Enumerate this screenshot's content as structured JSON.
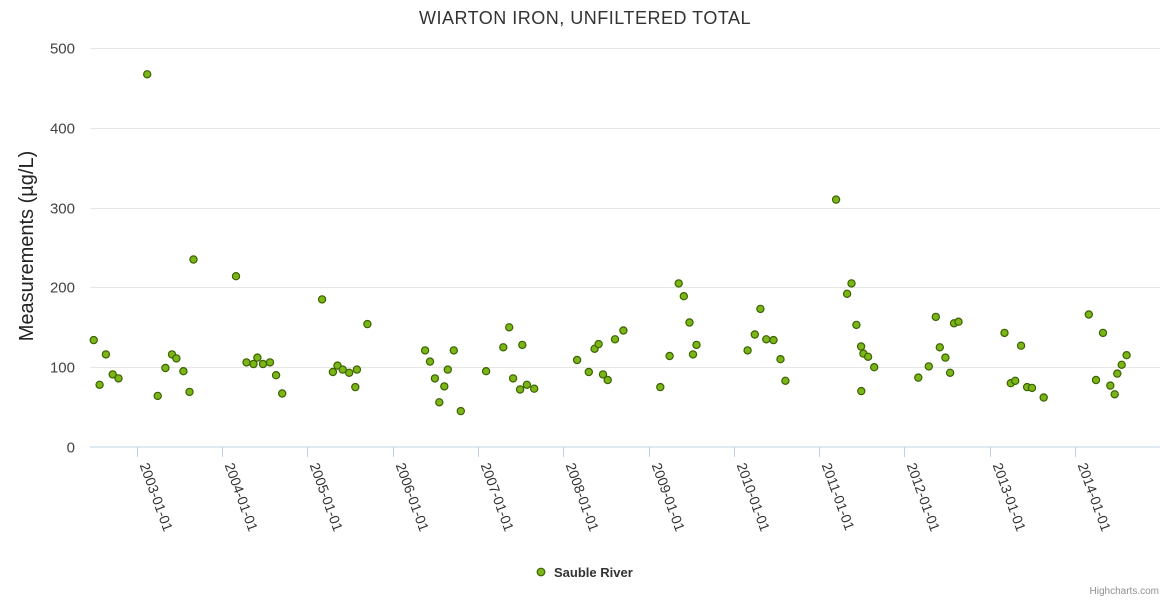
{
  "chart_data": {
    "type": "scatter",
    "title": "WIARTON IRON, UNFILTERED TOTAL",
    "ylabel": "Measurements (µg/L)",
    "xlabel": "",
    "ylim": [
      0,
      500
    ],
    "yticks": [
      0,
      100,
      200,
      300,
      400,
      500
    ],
    "xlim": [
      "2002-06-15",
      "2014-12-31"
    ],
    "xticks": [
      "2003-01-01",
      "2004-01-01",
      "2005-01-01",
      "2006-01-01",
      "2007-01-01",
      "2008-01-01",
      "2009-01-01",
      "2010-01-01",
      "2011-01-01",
      "2012-01-01",
      "2013-01-01",
      "2014-01-01"
    ],
    "legend": "bottom-center",
    "series": [
      {
        "name": "Sauble River",
        "color": "#7cb518",
        "points": [
          {
            "x": "2002-07-01",
            "y": 134
          },
          {
            "x": "2002-07-26",
            "y": 78
          },
          {
            "x": "2002-08-22",
            "y": 116
          },
          {
            "x": "2002-09-20",
            "y": 91
          },
          {
            "x": "2002-10-15",
            "y": 86
          },
          {
            "x": "2003-02-15",
            "y": 467
          },
          {
            "x": "2003-04-01",
            "y": 64
          },
          {
            "x": "2003-05-04",
            "y": 99
          },
          {
            "x": "2003-06-01",
            "y": 116
          },
          {
            "x": "2003-06-20",
            "y": 111
          },
          {
            "x": "2003-07-20",
            "y": 95
          },
          {
            "x": "2003-08-15",
            "y": 69
          },
          {
            "x": "2003-09-01",
            "y": 235
          },
          {
            "x": "2004-03-01",
            "y": 214
          },
          {
            "x": "2004-04-15",
            "y": 106
          },
          {
            "x": "2004-05-15",
            "y": 104
          },
          {
            "x": "2004-06-01",
            "y": 112
          },
          {
            "x": "2004-06-25",
            "y": 104
          },
          {
            "x": "2004-07-25",
            "y": 106
          },
          {
            "x": "2004-08-20",
            "y": 90
          },
          {
            "x": "2004-09-15",
            "y": 67
          },
          {
            "x": "2005-03-05",
            "y": 185
          },
          {
            "x": "2005-04-20",
            "y": 94
          },
          {
            "x": "2005-05-10",
            "y": 102
          },
          {
            "x": "2005-06-01",
            "y": 97
          },
          {
            "x": "2005-06-29",
            "y": 93
          },
          {
            "x": "2005-07-25",
            "y": 75
          },
          {
            "x": "2005-08-01",
            "y": 97
          },
          {
            "x": "2005-09-15",
            "y": 154
          },
          {
            "x": "2006-05-20",
            "y": 121
          },
          {
            "x": "2006-06-10",
            "y": 107
          },
          {
            "x": "2006-07-01",
            "y": 86
          },
          {
            "x": "2006-07-20",
            "y": 56
          },
          {
            "x": "2006-08-10",
            "y": 76
          },
          {
            "x": "2006-08-25",
            "y": 97
          },
          {
            "x": "2006-09-20",
            "y": 121
          },
          {
            "x": "2006-10-20",
            "y": 45
          },
          {
            "x": "2007-02-05",
            "y": 95
          },
          {
            "x": "2007-04-20",
            "y": 125
          },
          {
            "x": "2007-05-15",
            "y": 150
          },
          {
            "x": "2007-06-01",
            "y": 86
          },
          {
            "x": "2007-07-01",
            "y": 72
          },
          {
            "x": "2007-07-10",
            "y": 128
          },
          {
            "x": "2007-07-30",
            "y": 78
          },
          {
            "x": "2007-08-30",
            "y": 73
          },
          {
            "x": "2008-03-01",
            "y": 109
          },
          {
            "x": "2008-04-20",
            "y": 94
          },
          {
            "x": "2008-05-15",
            "y": 123
          },
          {
            "x": "2008-06-01",
            "y": 129
          },
          {
            "x": "2008-06-20",
            "y": 91
          },
          {
            "x": "2008-07-10",
            "y": 84
          },
          {
            "x": "2008-08-10",
            "y": 135
          },
          {
            "x": "2008-09-15",
            "y": 146
          },
          {
            "x": "2009-02-20",
            "y": 75
          },
          {
            "x": "2009-04-01",
            "y": 114
          },
          {
            "x": "2009-05-10",
            "y": 205
          },
          {
            "x": "2009-06-01",
            "y": 189
          },
          {
            "x": "2009-06-25",
            "y": 156
          },
          {
            "x": "2009-07-10",
            "y": 116
          },
          {
            "x": "2009-07-25",
            "y": 128
          },
          {
            "x": "2010-03-01",
            "y": 121
          },
          {
            "x": "2010-04-01",
            "y": 141
          },
          {
            "x": "2010-04-25",
            "y": 173
          },
          {
            "x": "2010-05-20",
            "y": 135
          },
          {
            "x": "2010-06-20",
            "y": 134
          },
          {
            "x": "2010-07-20",
            "y": 110
          },
          {
            "x": "2010-08-10",
            "y": 83
          },
          {
            "x": "2011-03-15",
            "y": 310
          },
          {
            "x": "2011-05-01",
            "y": 192
          },
          {
            "x": "2011-05-20",
            "y": 205
          },
          {
            "x": "2011-06-10",
            "y": 153
          },
          {
            "x": "2011-06-30",
            "y": 126
          },
          {
            "x": "2011-07-01",
            "y": 70
          },
          {
            "x": "2011-07-10",
            "y": 117
          },
          {
            "x": "2011-07-30",
            "y": 113
          },
          {
            "x": "2011-08-25",
            "y": 100
          },
          {
            "x": "2012-03-01",
            "y": 87
          },
          {
            "x": "2012-04-15",
            "y": 101
          },
          {
            "x": "2012-05-15",
            "y": 163
          },
          {
            "x": "2012-06-01",
            "y": 125
          },
          {
            "x": "2012-06-25",
            "y": 112
          },
          {
            "x": "2012-07-15",
            "y": 93
          },
          {
            "x": "2012-08-01",
            "y": 155
          },
          {
            "x": "2012-08-20",
            "y": 157
          },
          {
            "x": "2013-03-05",
            "y": 143
          },
          {
            "x": "2013-04-01",
            "y": 80
          },
          {
            "x": "2013-04-20",
            "y": 83
          },
          {
            "x": "2013-05-15",
            "y": 127
          },
          {
            "x": "2013-06-10",
            "y": 75
          },
          {
            "x": "2013-07-01",
            "y": 74
          },
          {
            "x": "2013-08-20",
            "y": 62
          },
          {
            "x": "2014-03-01",
            "y": 166
          },
          {
            "x": "2014-04-01",
            "y": 84
          },
          {
            "x": "2014-05-01",
            "y": 143
          },
          {
            "x": "2014-06-01",
            "y": 77
          },
          {
            "x": "2014-06-20",
            "y": 66
          },
          {
            "x": "2014-07-01",
            "y": 92
          },
          {
            "x": "2014-07-20",
            "y": 103
          },
          {
            "x": "2014-08-10",
            "y": 115
          }
        ]
      }
    ]
  },
  "credits": "Highcharts.com"
}
